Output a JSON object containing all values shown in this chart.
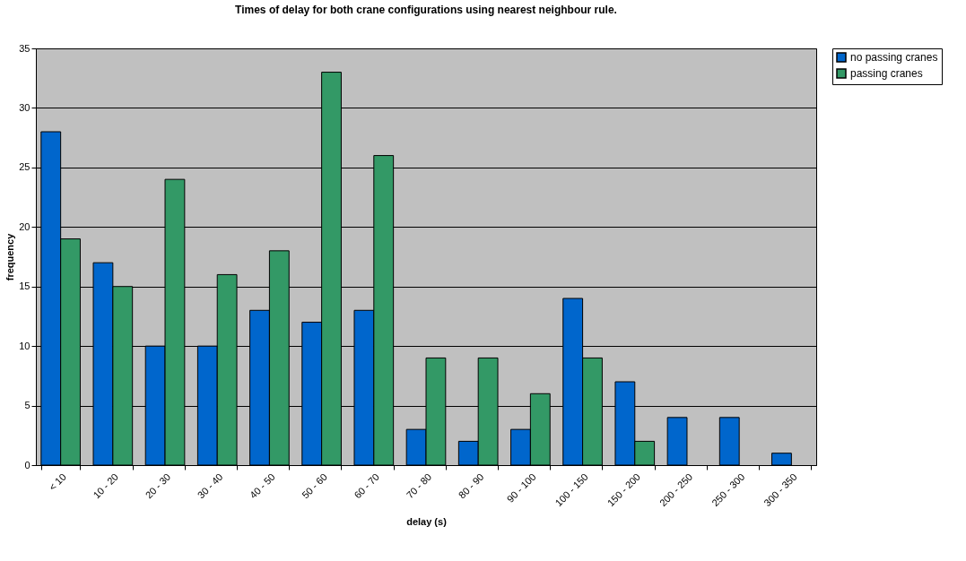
{
  "chart_data": {
    "type": "bar",
    "title": "Times of delay for both crane configurations using nearest neighbour rule.",
    "xlabel": "delay (s)",
    "ylabel": "frequency",
    "categories": [
      "< 10",
      "10 - 20",
      "20 - 30",
      "30 - 40",
      "40 - 50",
      "50 - 60",
      "60 - 70",
      "70 - 80",
      "80 - 90",
      "90 - 100",
      "100 - 150",
      "150 - 200",
      "200 - 250",
      "250 - 300",
      "300 - 350"
    ],
    "series": [
      {
        "name": "no passing cranes",
        "color": "#0066cc",
        "values": [
          28,
          17,
          10,
          10,
          13,
          12,
          13,
          3,
          2,
          3,
          14,
          7,
          4,
          4,
          1
        ]
      },
      {
        "name": "passing cranes",
        "color": "#339966",
        "values": [
          19,
          15,
          24,
          16,
          18,
          33,
          26,
          9,
          9,
          6,
          9,
          2,
          null,
          null,
          null
        ]
      }
    ],
    "ylim": [
      0,
      35
    ],
    "yticks": [
      0,
      5,
      10,
      15,
      20,
      25,
      30,
      35
    ],
    "grid": "y",
    "legend": "right"
  }
}
